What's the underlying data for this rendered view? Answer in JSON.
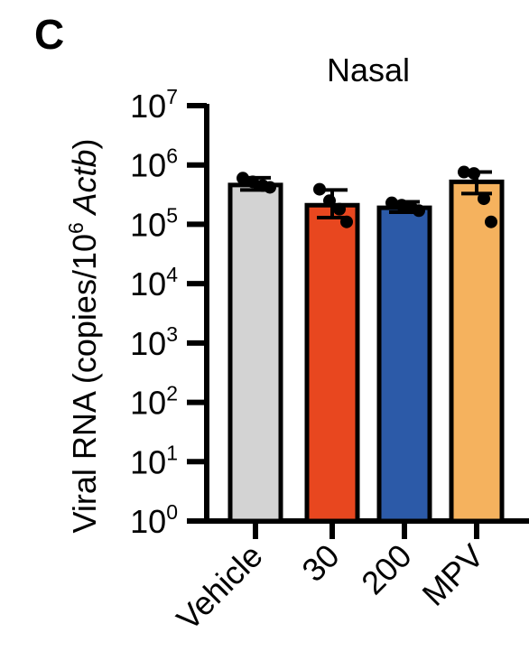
{
  "panel_label": "C",
  "chart_data": {
    "type": "bar",
    "title": "Nasal",
    "ylabel": {
      "prefix": "Viral RNA (copies/10",
      "exponent": "6",
      "suffix": " Actb",
      "italic_word": "Actb",
      "close": ")"
    },
    "yscale": "log",
    "ylim": [
      1,
      10000000
    ],
    "yticks": [
      {
        "base": "10",
        "exp": "0",
        "value": 1
      },
      {
        "base": "10",
        "exp": "1",
        "value": 10
      },
      {
        "base": "10",
        "exp": "2",
        "value": 100
      },
      {
        "base": "10",
        "exp": "3",
        "value": 1000
      },
      {
        "base": "10",
        "exp": "4",
        "value": 10000
      },
      {
        "base": "10",
        "exp": "5",
        "value": 100000
      },
      {
        "base": "10",
        "exp": "6",
        "value": 1000000
      },
      {
        "base": "10",
        "exp": "7",
        "value": 10000000
      }
    ],
    "categories": [
      "Vehicle",
      "30",
      "200",
      "MPV"
    ],
    "values": [
      460000,
      210000,
      190000,
      520000
    ],
    "error_upper": [
      610000,
      380000,
      240000,
      760000
    ],
    "error_lower": [
      380000,
      130000,
      160000,
      330000
    ],
    "points": [
      [
        600000,
        520000,
        450000,
        420000
      ],
      [
        390000,
        250000,
        180000,
        110000
      ],
      [
        230000,
        210000,
        190000,
        170000
      ],
      [
        760000,
        720000,
        270000,
        110000
      ]
    ],
    "colors": [
      "#d3d3d3",
      "#e8471f",
      "#2c5aa8",
      "#f5b25e"
    ],
    "grid": false,
    "legend": "none"
  }
}
